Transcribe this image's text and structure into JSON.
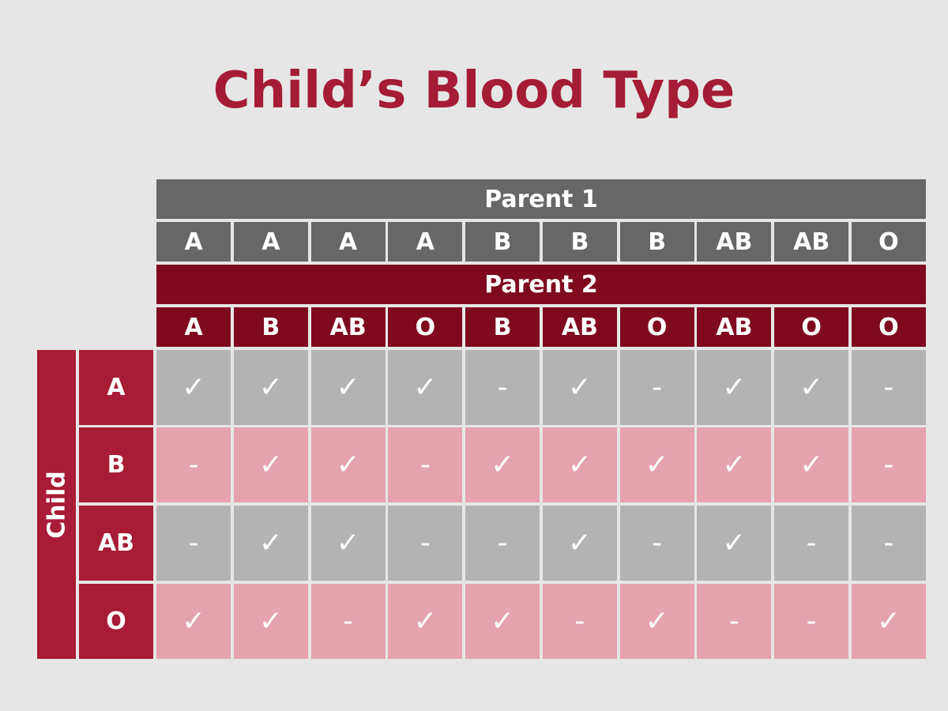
{
  "title": "Child’s Blood Type",
  "table": {
    "parent1_header": "Parent 1",
    "parent1_types": [
      "A",
      "A",
      "A",
      "A",
      "B",
      "B",
      "B",
      "AB",
      "AB",
      "O"
    ],
    "parent2_header": "Parent 2",
    "parent2_types": [
      "A",
      "B",
      "AB",
      "O",
      "B",
      "AB",
      "O",
      "AB",
      "O",
      "O"
    ],
    "child_header": "Child",
    "rows": [
      {
        "label": "A",
        "cells": [
          "✓",
          "✓",
          "✓",
          "✓",
          "-",
          "✓",
          "-",
          "✓",
          "✓",
          "-"
        ]
      },
      {
        "label": "B",
        "cells": [
          "-",
          "✓",
          "✓",
          "-",
          "✓",
          "✓",
          "✓",
          "✓",
          "✓",
          "-"
        ]
      },
      {
        "label": "AB",
        "cells": [
          "-",
          "✓",
          "✓",
          "-",
          "-",
          "✓",
          "-",
          "✓",
          "-",
          "-"
        ]
      },
      {
        "label": "O",
        "cells": [
          "✓",
          "✓",
          "-",
          "✓",
          "✓",
          "-",
          "✓",
          "-",
          "-",
          "✓"
        ]
      }
    ]
  }
}
